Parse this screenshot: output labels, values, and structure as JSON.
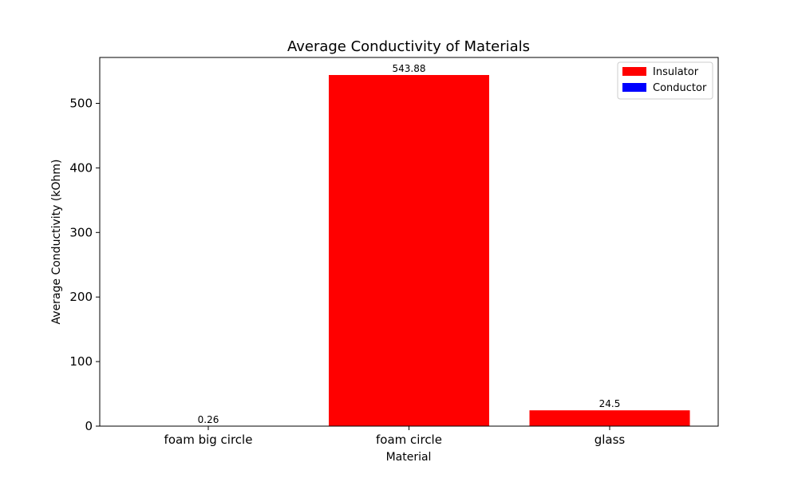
{
  "chart_data": {
    "type": "bar",
    "title": "Average Conductivity of Materials",
    "xlabel": "Material",
    "ylabel": "Average Conductivity (kOhm)",
    "categories": [
      "foam big circle",
      "foam circle",
      "glass"
    ],
    "values": [
      0.26,
      543.88,
      24.5
    ],
    "value_labels": [
      "0.26",
      "543.88",
      "24.5"
    ],
    "bar_classes": [
      "Insulator",
      "Insulator",
      "Insulator"
    ],
    "ylim": [
      0,
      571.07
    ],
    "yticks": [
      0,
      100,
      200,
      300,
      400,
      500
    ],
    "grid": false,
    "legend": {
      "placement": "top-right",
      "entries": [
        {
          "label": "Insulator",
          "color": "#ff0000"
        },
        {
          "label": "Conductor",
          "color": "#0000ff"
        }
      ]
    },
    "colors": {
      "Insulator": "#ff0000",
      "Conductor": "#0000ff"
    }
  }
}
